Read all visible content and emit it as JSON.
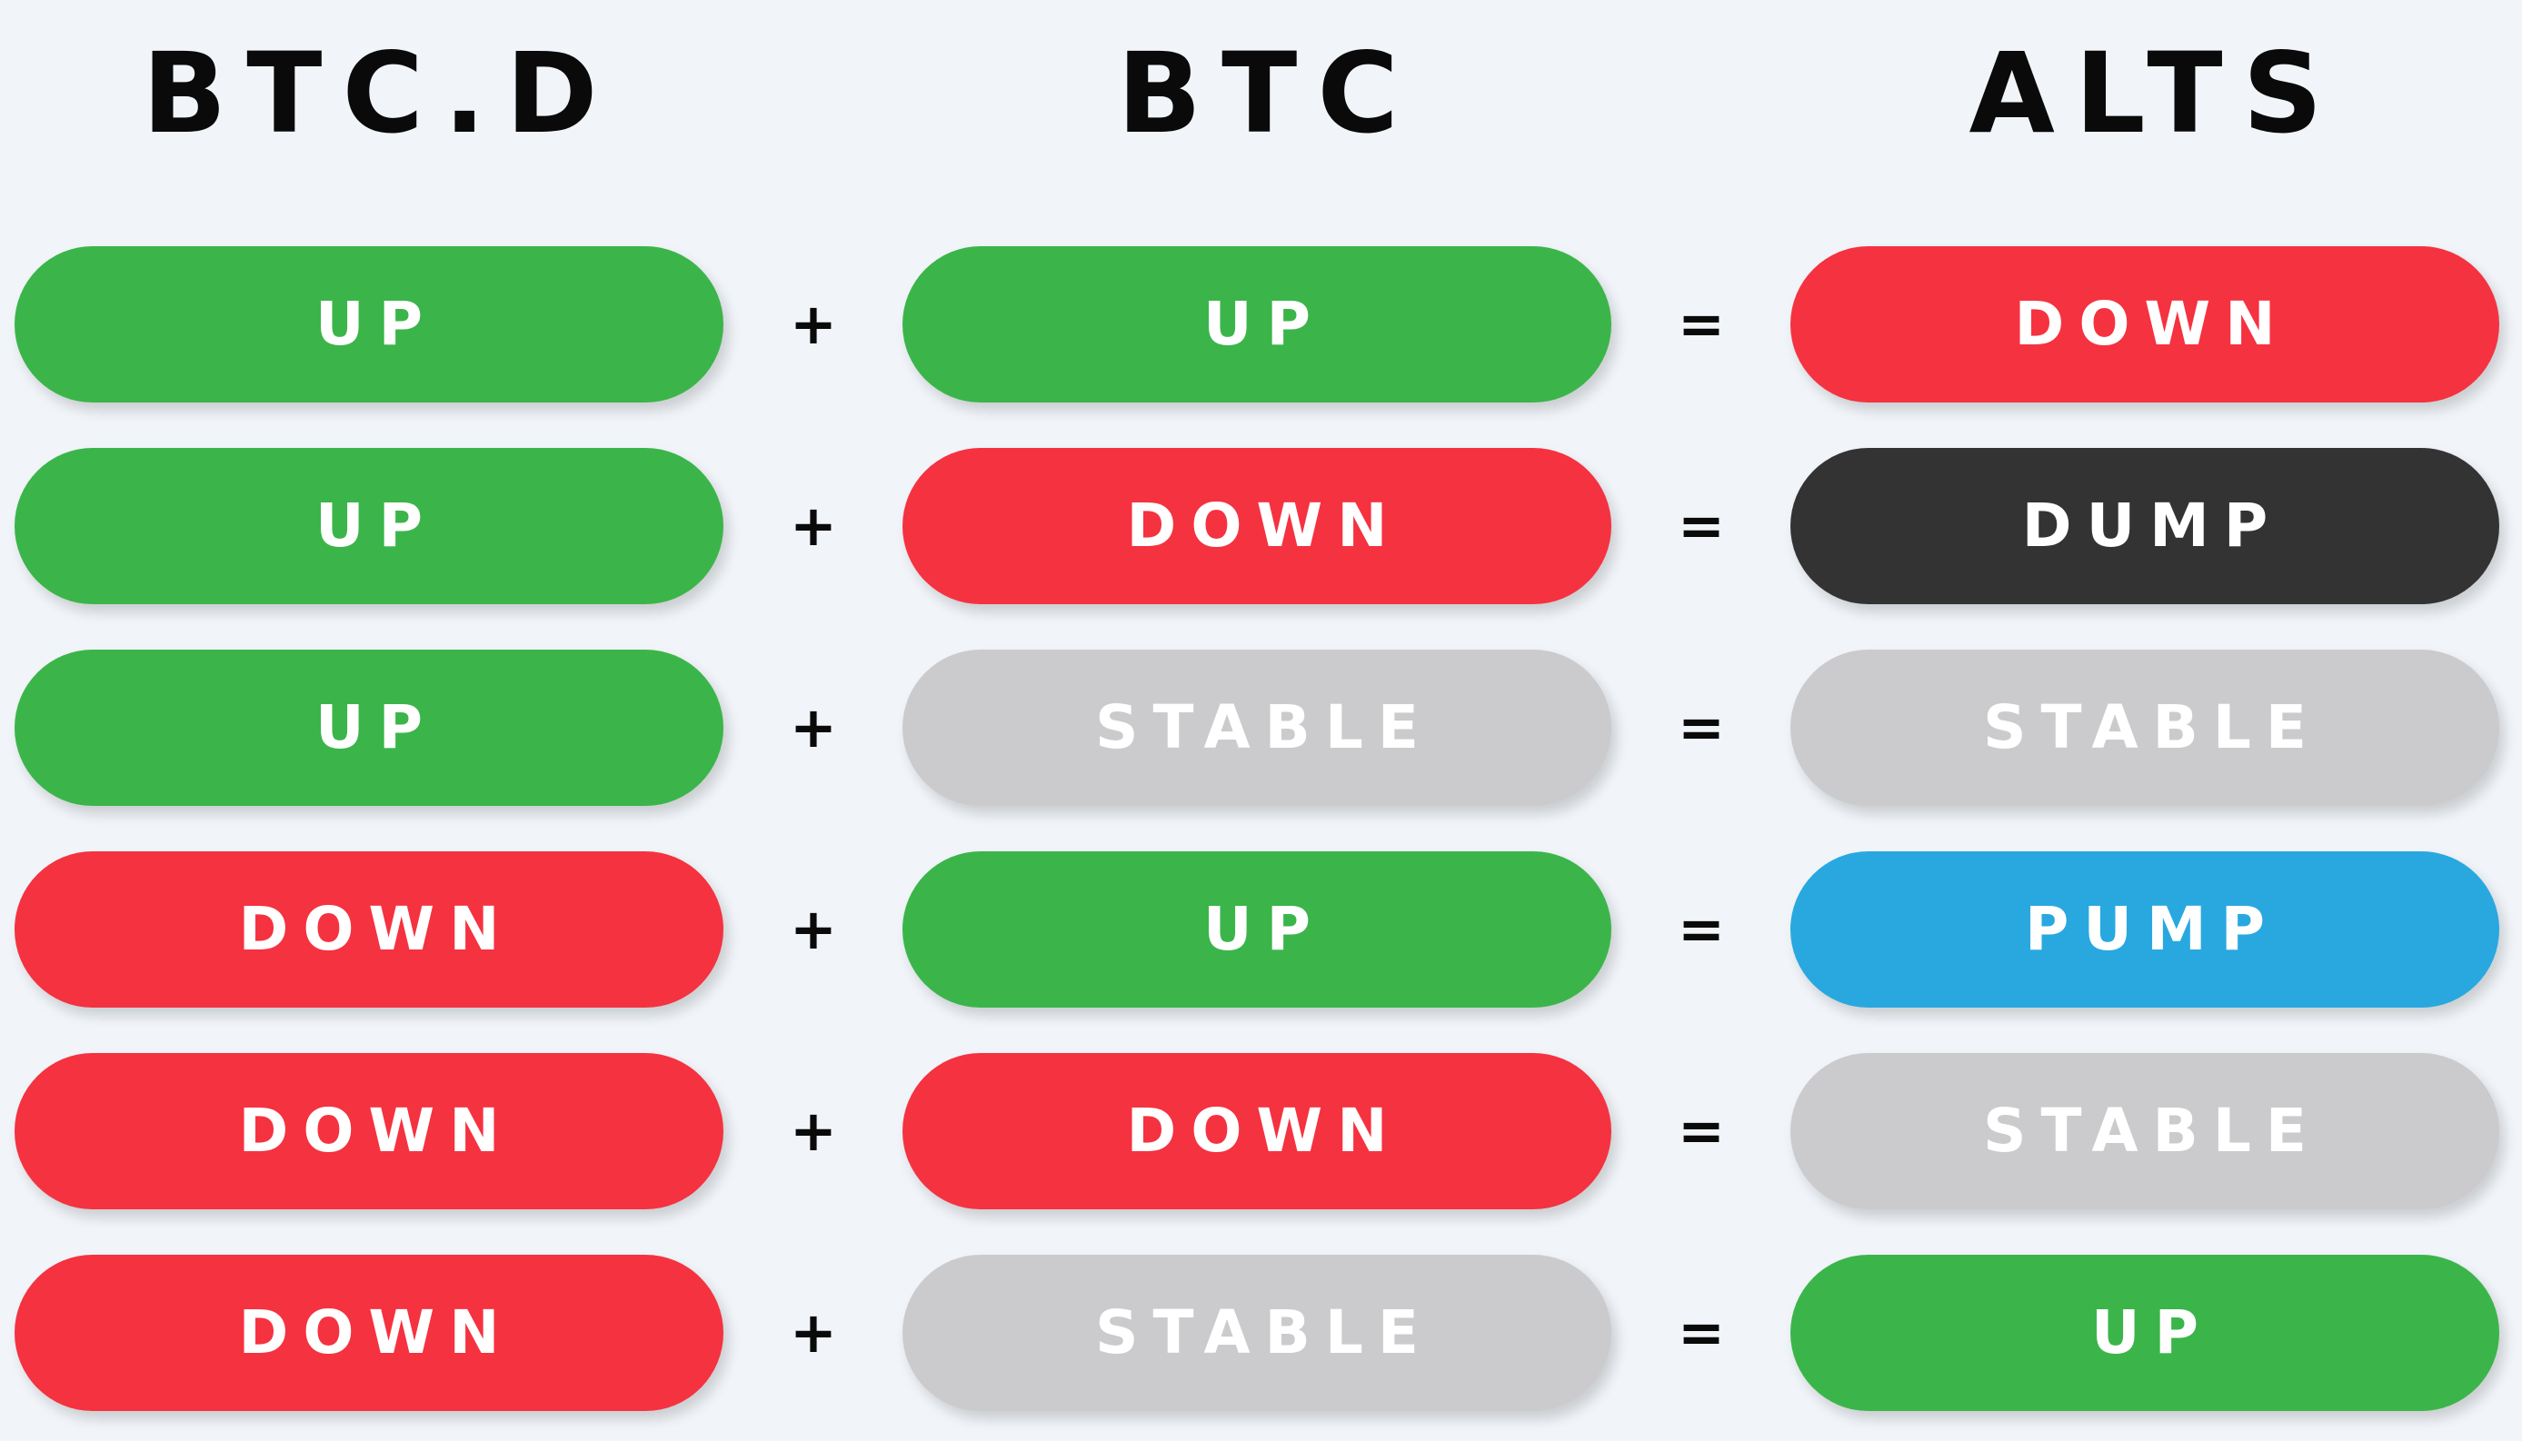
{
  "colors": {
    "background": "#f1f5f9",
    "UP": "#3bb54a",
    "DOWN": "#f53240",
    "STABLE": "#cbcbcd",
    "DUMP": "#333333",
    "PUMP": "#29a8e0"
  },
  "headers": {
    "btcd": "BTC.D",
    "btc": "BTC",
    "alts": "ALTS"
  },
  "operators": {
    "plus": "+",
    "equals": "="
  },
  "rows": [
    {
      "btcd": "UP",
      "btc": "UP",
      "alts": "DOWN"
    },
    {
      "btcd": "UP",
      "btc": "DOWN",
      "alts": "DUMP"
    },
    {
      "btcd": "UP",
      "btc": "STABLE",
      "alts": "STABLE"
    },
    {
      "btcd": "DOWN",
      "btc": "UP",
      "alts": "PUMP"
    },
    {
      "btcd": "DOWN",
      "btc": "DOWN",
      "alts": "STABLE"
    },
    {
      "btcd": "DOWN",
      "btc": "STABLE",
      "alts": "UP"
    }
  ]
}
